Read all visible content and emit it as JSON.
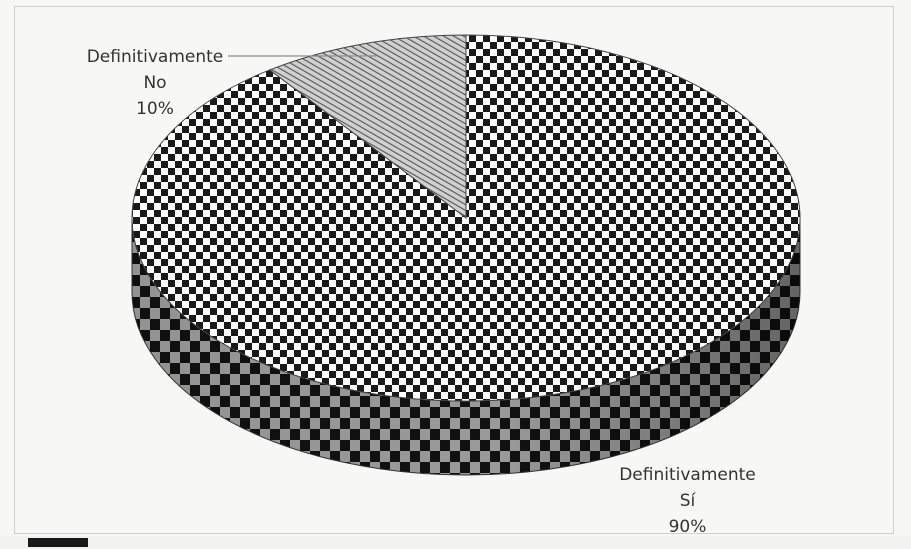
{
  "chart_data": {
    "type": "pie",
    "style": "3d",
    "categories": [
      "Definitivamente No",
      "Definitivamente Sí"
    ],
    "values": [
      10,
      90
    ],
    "labels": [
      {
        "lines": [
          "Definitivamente",
          "No",
          "10%"
        ]
      },
      {
        "lines": [
          "Definitivamente",
          "Sí",
          "90%"
        ]
      }
    ],
    "legend": "none",
    "title": ""
  },
  "colors": {
    "background": "#f7f7f5",
    "checker_dark": "#1a1a1a",
    "checker_light": "#ffffff",
    "hatch": "#555555",
    "leader_line": "#8a8a8a"
  }
}
